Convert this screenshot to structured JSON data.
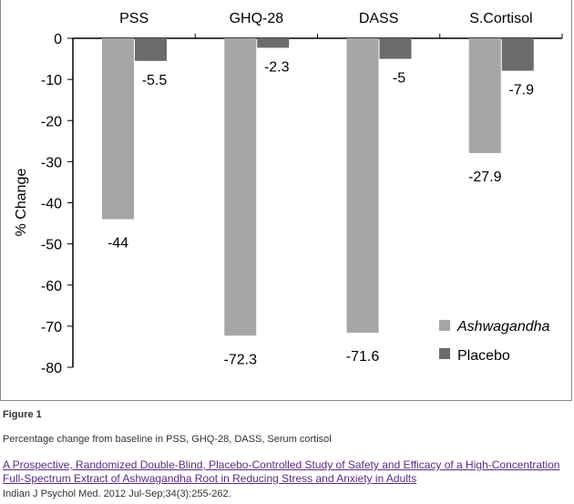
{
  "figure": {
    "label": "Figure 1",
    "caption": "Percentage change from baseline in PSS, GHQ-28, DASS, Serum cortisol",
    "link_text": "A Prospective, Randomized Double-Blind, Placebo-Controlled Study of Safety and Efficacy of a High-Concentration Full-Spectrum Extract of Ashwagandha Root in Reducing Stress and Anxiety in Adults",
    "citation": "Indian J Psychol Med. 2012 Jul-Sep;34(3):255-262."
  },
  "chart_data": {
    "type": "bar",
    "categories": [
      "PSS",
      "GHQ-28",
      "DASS",
      "S.Cortisol"
    ],
    "series": [
      {
        "name": "Ashwagandha",
        "values": [
          -44,
          -72.3,
          -71.6,
          -27.9
        ],
        "labels": [
          "-44",
          "-72.3",
          "-71.6",
          "-27.9"
        ],
        "color": "#a6a6a6"
      },
      {
        "name": "Placebo",
        "values": [
          -5.5,
          -2.3,
          -5,
          -7.9
        ],
        "labels": [
          "-5.5",
          "-2.3",
          "-5",
          "-7.9"
        ],
        "color": "#6b6b6b"
      }
    ],
    "ylabel": "% Change",
    "ylim": [
      -80,
      0
    ],
    "yticks": [
      0,
      -10,
      -20,
      -30,
      -40,
      -50,
      -60,
      -70,
      -80
    ],
    "ytick_labels": [
      "0",
      "-10",
      "-20",
      "-30",
      "-40",
      "-50",
      "-60",
      "-70",
      "-80"
    ],
    "xaxis_position": "top",
    "legend_position": "bottom-right",
    "grid": false
  }
}
